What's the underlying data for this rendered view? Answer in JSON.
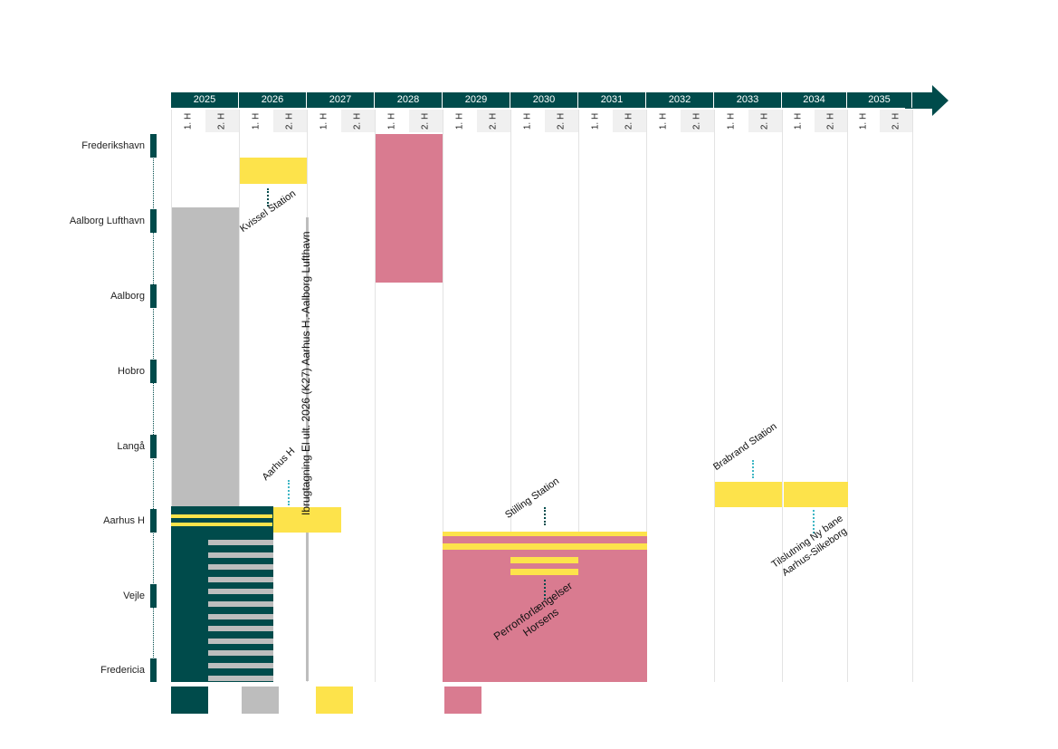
{
  "colors": {
    "teal": "#004b4b",
    "grey": "#bdbdbd",
    "yellow": "#fde34b",
    "pink": "#d97b90"
  },
  "years": [
    "2025",
    "2026",
    "2027",
    "2028",
    "2029",
    "2030",
    "2031",
    "2032",
    "2033",
    "2034",
    "2035"
  ],
  "half_labels": [
    "1. H",
    "2. H"
  ],
  "stations": [
    "Frederikshavn",
    "Aalborg Lufthavn",
    "Aalborg",
    "Hobro",
    "Langå",
    "Aarhus H",
    "Vejle",
    "Fredericia"
  ],
  "annotations": {
    "kvissel": "Kvissel Station",
    "ibrugtagning": "Ibrugtagning El  ult. 2026 (K27) Aarhus H.-Aalborg Lufthavn",
    "aarhus_h": "Aarhus H",
    "stilling": "Stilling  Station",
    "perron_line1": "Perronforlængelser",
    "perron_line2": "Horsens",
    "brabrand": "Brabrand Station",
    "tilslutning_line1": "Tilslutning  Ny bane",
    "tilslutning_line2": "Aarhus-Silkeborg"
  },
  "legend": [
    "teal",
    "grey",
    "yellow",
    "pink"
  ]
}
